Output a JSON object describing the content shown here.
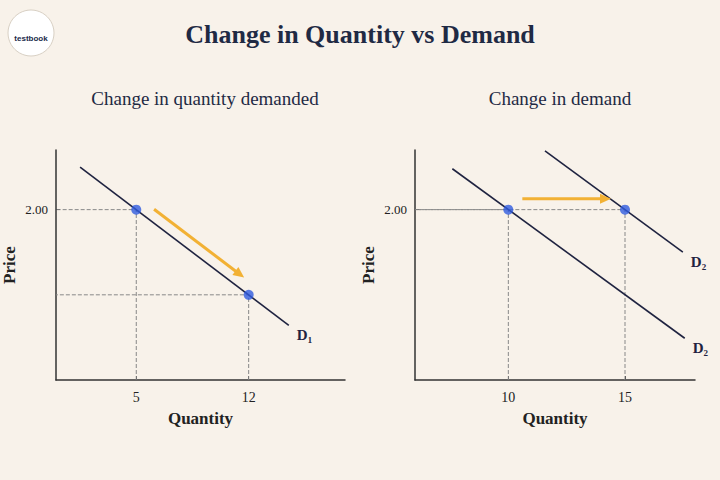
{
  "title": "Change in Quantity vs Demand",
  "logo": "testbook",
  "chart_data": [
    {
      "type": "line",
      "title": "Change in quantity demanded",
      "xlabel": "Quantity",
      "ylabel": "Price",
      "xlim": [
        0,
        18
      ],
      "ylim": [
        0,
        2.7
      ],
      "xticks": [
        5,
        12
      ],
      "yticks": [
        {
          "value": 2,
          "label": "2.00"
        }
      ],
      "grid": false,
      "series": [
        {
          "name": "D₁",
          "color": "#1f2340",
          "x": [
            1.5,
            14.5
          ],
          "values": [
            2.5,
            0.64
          ]
        }
      ],
      "points": {
        "color": "#2f5be0",
        "x": [
          5,
          12
        ],
        "values": [
          2,
          1
        ]
      }
    },
    {
      "type": "line",
      "title": "Change in demand",
      "xlabel": "Quantity",
      "ylabel": "Price",
      "xlim": [
        6,
        18
      ],
      "ylim": [
        0,
        2.7
      ],
      "xticks": [
        10,
        15
      ],
      "yticks": [
        {
          "value": 2,
          "label": "2.00"
        }
      ],
      "grid": false,
      "series": [
        {
          "name": "D₂",
          "color": "#1f2340",
          "x": [
            7.6,
            17.56
          ],
          "values": [
            2.48,
            0.49
          ]
        },
        {
          "name": "D₂",
          "color": "#1f2340",
          "x": [
            11.57,
            17.48
          ],
          "values": [
            2.69,
            1.5
          ]
        }
      ],
      "points": {
        "color": "#2f5be0",
        "x": [
          10,
          15
        ],
        "values": [
          2,
          2
        ]
      }
    }
  ]
}
